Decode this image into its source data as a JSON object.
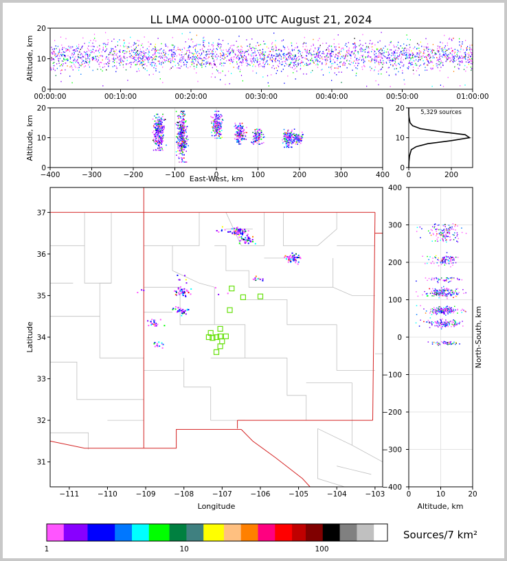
{
  "title": "LL LMA 0000-0100 UTC August 21, 2024",
  "colors": {
    "frame": "#c8c8c8",
    "axis": "#000000",
    "grid": "#e3e3e3",
    "county": "#bfbfbf",
    "state": "#d42020",
    "station": "#66e00a"
  },
  "chart_data": [
    {
      "id": "time-height",
      "type": "scatter",
      "ylabel": "Altitude, km",
      "xlabel": "",
      "ylim": [
        0,
        20
      ],
      "yticks": [
        "0",
        "10",
        "20"
      ],
      "xticks": [
        "00:00:00",
        "00:10:00",
        "00:20:00",
        "00:30:00",
        "00:40:00",
        "00:50:00",
        "01:00:00"
      ],
      "xlim_minutes": [
        0,
        60
      ],
      "altitude_core_km": [
        8,
        14
      ]
    },
    {
      "id": "ew-height",
      "type": "scatter",
      "xlabel": "East-West, km",
      "ylabel": "Altitude, km",
      "xlim": [
        -400,
        400
      ],
      "ylim": [
        0,
        20
      ],
      "xticks": [
        "−400",
        "−300",
        "−200",
        "−100",
        "0",
        "100",
        "200",
        "300",
        "400"
      ],
      "yticks": [
        "0",
        "10",
        "20"
      ],
      "clusters_x_km": [
        {
          "x": -140,
          "alt": [
            6,
            18
          ]
        },
        {
          "x": -85,
          "alt": [
            2,
            19
          ]
        },
        {
          "x": 0,
          "alt": [
            10,
            19
          ]
        },
        {
          "x": 55,
          "alt": [
            8,
            15
          ]
        },
        {
          "x": 97,
          "alt": [
            8,
            13
          ]
        },
        {
          "x": 172,
          "alt": [
            7,
            13
          ]
        },
        {
          "x": 193,
          "alt": [
            8,
            12
          ]
        }
      ]
    },
    {
      "id": "altitude-histogram",
      "type": "line",
      "annotation": "5,329 sources",
      "xlim": [
        0,
        300
      ],
      "ylim": [
        0,
        20
      ],
      "xticks": [
        "0",
        "200"
      ],
      "yticks": [
        "0",
        "10",
        "20"
      ],
      "profile": [
        {
          "alt": 0,
          "n": 0
        },
        {
          "alt": 2,
          "n": 1
        },
        {
          "alt": 4,
          "n": 4
        },
        {
          "alt": 6,
          "n": 12
        },
        {
          "alt": 7,
          "n": 35
        },
        {
          "alt": 8,
          "n": 90
        },
        {
          "alt": 9,
          "n": 200
        },
        {
          "alt": 10,
          "n": 285
        },
        {
          "alt": 11,
          "n": 265
        },
        {
          "alt": 12,
          "n": 150
        },
        {
          "alt": 13,
          "n": 55
        },
        {
          "alt": 14,
          "n": 18
        },
        {
          "alt": 15,
          "n": 6
        },
        {
          "alt": 17,
          "n": 1
        },
        {
          "alt": 18,
          "n": 0
        },
        {
          "alt": 20,
          "n": 0
        }
      ]
    },
    {
      "id": "plan-view",
      "type": "scatter",
      "xlabel": "Longitude",
      "ylabel": "Latitude",
      "xlim": [
        -111.5,
        -102.8
      ],
      "ylim": [
        30.4,
        37.6
      ],
      "xticks": [
        "−111",
        "−110",
        "−109",
        "−108",
        "−107",
        "−106",
        "−105",
        "−104",
        "−103"
      ],
      "yticks": [
        "31",
        "32",
        "33",
        "34",
        "35",
        "36",
        "37"
      ],
      "clusters": [
        {
          "lon": -106.6,
          "lat": 36.55,
          "n": 70
        },
        {
          "lon": -106.35,
          "lat": 36.35,
          "n": 35
        },
        {
          "lon": -107.0,
          "lat": 36.58,
          "n": 8
        },
        {
          "lon": -105.15,
          "lat": 35.9,
          "n": 55
        },
        {
          "lon": -108.05,
          "lat": 35.12,
          "n": 35
        },
        {
          "lon": -108.12,
          "lat": 35.42,
          "n": 6
        },
        {
          "lon": -108.1,
          "lat": 34.65,
          "n": 30
        },
        {
          "lon": -108.8,
          "lat": 34.37,
          "n": 22
        },
        {
          "lon": -108.7,
          "lat": 33.85,
          "n": 12
        },
        {
          "lon": -106.05,
          "lat": 35.4,
          "n": 10
        },
        {
          "lon": -109.1,
          "lat": 35.12,
          "n": 3
        },
        {
          "lon": -107.0,
          "lat": 35.1,
          "n": 3
        }
      ],
      "stations": [
        {
          "lon": -106.75,
          "lat": 35.17
        },
        {
          "lon": -106.45,
          "lat": 34.96
        },
        {
          "lon": -106.0,
          "lat": 34.98
        },
        {
          "lon": -106.8,
          "lat": 34.65
        },
        {
          "lon": -107.05,
          "lat": 34.2
        },
        {
          "lon": -107.3,
          "lat": 34.1
        },
        {
          "lon": -107.35,
          "lat": 34.0
        },
        {
          "lon": -107.25,
          "lat": 33.98
        },
        {
          "lon": -107.15,
          "lat": 34.0
        },
        {
          "lon": -107.05,
          "lat": 34.02
        },
        {
          "lon": -106.9,
          "lat": 34.02
        },
        {
          "lon": -107.0,
          "lat": 33.9
        },
        {
          "lon": -107.05,
          "lat": 33.78
        },
        {
          "lon": -107.15,
          "lat": 33.64
        }
      ]
    },
    {
      "id": "ns-height",
      "type": "scatter",
      "xlabel": "Altitude, km",
      "ylabel": "North-South, km",
      "xlim": [
        0,
        20
      ],
      "ylim": [
        -400,
        400
      ],
      "xticks": [
        "0",
        "10",
        "20"
      ],
      "yticks": [
        "−400",
        "−300",
        "−200",
        "−100",
        "0",
        "100",
        "200",
        "300",
        "400"
      ],
      "clusters_y_km": [
        {
          "y": 280,
          "spread": 25,
          "n": 70
        },
        {
          "y": 208,
          "spread": 15,
          "n": 45
        },
        {
          "y": 155,
          "spread": 6,
          "n": 25
        },
        {
          "y": 120,
          "spread": 12,
          "n": 90
        },
        {
          "y": 72,
          "spread": 10,
          "n": 90
        },
        {
          "y": 38,
          "spread": 10,
          "n": 60
        },
        {
          "y": -15,
          "spread": 5,
          "n": 25
        }
      ]
    }
  ],
  "colorbar": {
    "label": "Sources/7 km²",
    "ticks": [
      "1",
      "10",
      "100"
    ],
    "colors": [
      "#ff55ff",
      "#8800ff",
      "#0000ff",
      "#0077ff",
      "#00ffff",
      "#00ff00",
      "#008040",
      "#3f8080",
      "#ffff00",
      "#ffc080",
      "#ff8000",
      "#ff0080",
      "#ff0000",
      "#c00000",
      "#800000",
      "#000000",
      "#808080",
      "#c0c0c0",
      "#ffffff"
    ]
  }
}
